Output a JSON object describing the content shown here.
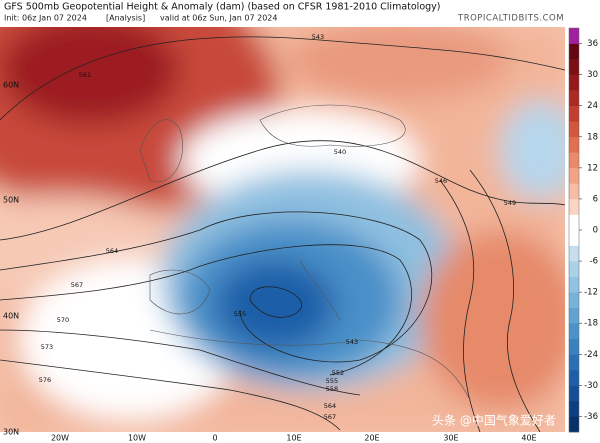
{
  "header": {
    "title": "GFS 500mb Geopotential Height & Anomaly (dam) (based on CFSR 1981-2010 Climatology)",
    "init": "Init: 06z Jan 07 2024",
    "analysis": "[Analysis]",
    "valid": "valid at 06z Sun, Jan 07 2024",
    "source": "TROPICALTIDBITS.COM"
  },
  "map": {
    "lat_labels": [
      "60N",
      "50N",
      "40N",
      "30N"
    ],
    "lon_labels": [
      "20W",
      "10W",
      "0",
      "10E",
      "20E",
      "30E",
      "40E"
    ],
    "contour_labels": [
      "561",
      "543",
      "540",
      "546",
      "549",
      "564",
      "567",
      "570",
      "573",
      "576",
      "555",
      "543",
      "552",
      "555",
      "558",
      "564",
      "567"
    ]
  },
  "colorbar": {
    "range": [
      -39,
      39
    ],
    "ticks": [
      36,
      30,
      24,
      18,
      12,
      6,
      0,
      -6,
      -12,
      -18,
      -24,
      -30,
      -36
    ],
    "colors": [
      "#08306b",
      "#0d3f82",
      "#174f97",
      "#1f5fa8",
      "#2b70b6",
      "#3a81c0",
      "#4c92c9",
      "#61a2d1",
      "#78b2d9",
      "#92c2e1",
      "#abd1e8",
      "#c6deef",
      "#ffffff",
      "#ffffff",
      "#fbd5c4",
      "#f7bca5",
      "#f2a386",
      "#ea8a6b",
      "#e07052",
      "#d1573f",
      "#c03f2f",
      "#ab2a24",
      "#94191c",
      "#7c0e16",
      "#640612",
      "#a020a0"
    ]
  },
  "watermark": "头条 @中国气象爱好者"
}
